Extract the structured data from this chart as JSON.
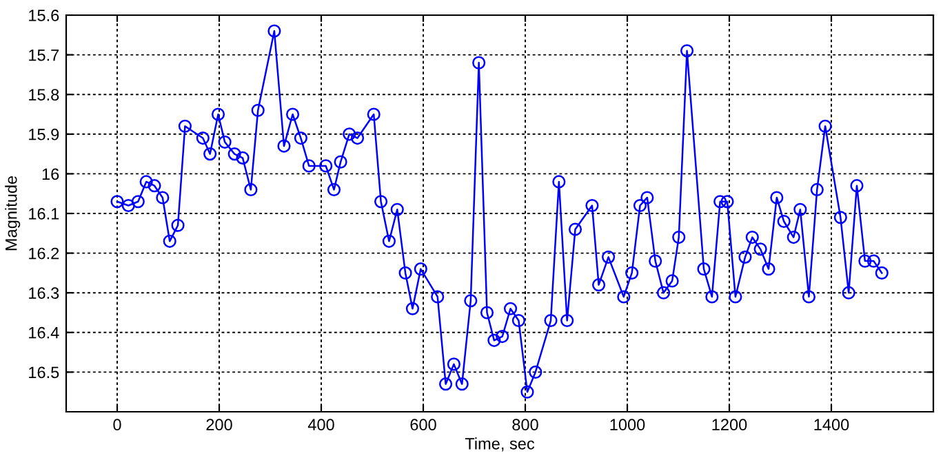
{
  "chart_data": {
    "type": "line",
    "xlabel": "Time, sec",
    "ylabel": "Magnitude",
    "x": [
      0,
      22,
      41,
      57,
      73,
      89,
      103,
      119,
      133,
      168,
      182,
      198,
      211,
      230,
      246,
      262,
      276,
      308,
      327,
      344,
      360,
      376,
      409,
      425,
      438,
      455,
      471,
      503,
      517,
      533,
      549,
      565,
      579,
      595,
      628,
      644,
      660,
      676,
      693,
      709,
      725,
      739,
      755,
      771,
      787,
      804,
      820,
      850,
      866,
      882,
      898,
      931,
      944,
      963,
      993,
      1009,
      1025,
      1039,
      1055,
      1071,
      1088,
      1101,
      1117,
      1150,
      1166,
      1182,
      1196,
      1212,
      1231,
      1245,
      1261,
      1277,
      1293,
      1307,
      1326,
      1339,
      1356,
      1372,
      1388,
      1418,
      1434,
      1450,
      1466,
      1483,
      1499
    ],
    "series": [
      {
        "color": "#0000ff",
        "values": [
          16.07,
          16.08,
          16.07,
          16.02,
          16.03,
          16.06,
          16.17,
          16.13,
          15.88,
          15.91,
          15.95,
          15.85,
          15.92,
          15.95,
          15.96,
          16.04,
          15.84,
          15.64,
          15.93,
          15.85,
          15.91,
          15.98,
          15.98,
          16.04,
          15.97,
          15.9,
          15.91,
          15.85,
          16.07,
          16.17,
          16.09,
          16.25,
          16.34,
          16.24,
          16.31,
          16.53,
          16.48,
          16.53,
          16.32,
          15.72,
          16.35,
          16.42,
          16.41,
          16.34,
          16.37,
          16.55,
          16.5,
          16.37,
          16.02,
          16.37,
          16.14,
          16.08,
          16.28,
          16.21,
          16.31,
          16.25,
          16.08,
          16.06,
          16.22,
          16.3,
          16.27,
          16.16,
          15.69,
          16.24,
          16.31,
          16.07,
          16.07,
          16.31,
          16.21,
          16.16,
          16.19,
          16.24,
          16.06,
          16.12,
          16.16,
          16.09,
          16.31,
          16.04,
          15.88,
          16.11,
          16.3,
          16.03,
          16.22,
          16.22,
          16.25
        ]
      }
    ],
    "xlim": [
      -100,
      1600
    ],
    "xticks": [
      0,
      200,
      400,
      600,
      800,
      1000,
      1200,
      1400
    ],
    "ylim": [
      16.6,
      15.6
    ],
    "yticks": [
      15.6,
      15.7,
      15.8,
      15.9,
      16,
      16.1,
      16.2,
      16.3,
      16.4,
      16.5
    ],
    "grid": true,
    "marker": "circle",
    "line_style": "solid",
    "legend": false
  }
}
